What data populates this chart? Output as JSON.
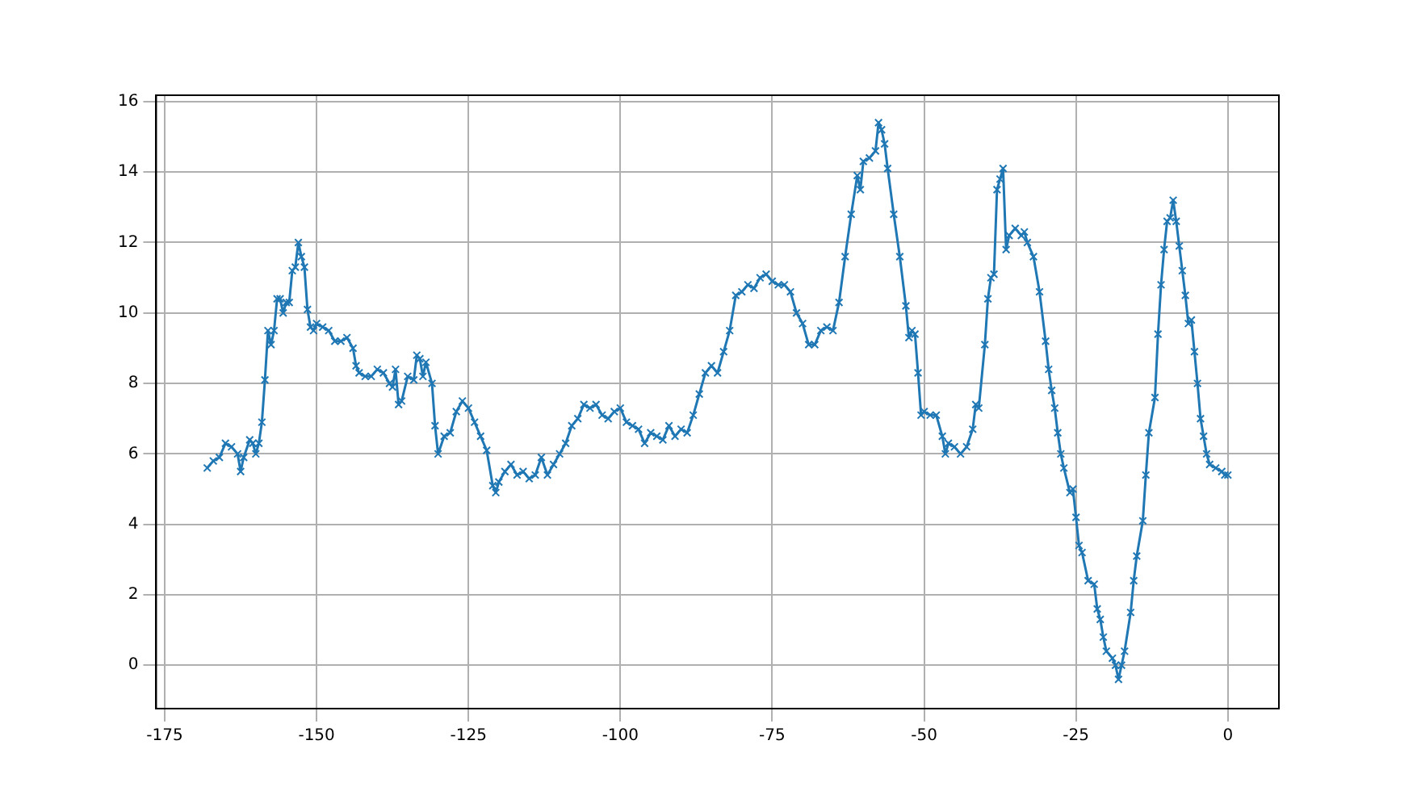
{
  "chart_data": {
    "type": "line",
    "xlim": [
      -176.4,
      8.4
    ],
    "ylim": [
      -1.23,
      16.18
    ],
    "xticks": [
      -175,
      -150,
      -125,
      -100,
      -75,
      -50,
      -25,
      0
    ],
    "yticks": [
      0,
      2,
      4,
      6,
      8,
      10,
      12,
      14,
      16
    ],
    "grid": true,
    "marker": "cross",
    "line_style": "solid",
    "legend": false,
    "series": [
      {
        "color": "#1f77b4",
        "x": [
          -168,
          -167,
          -166,
          -165,
          -164,
          -163,
          -162.5,
          -162,
          -161,
          -160.5,
          -160,
          -159.5,
          -159,
          -158.5,
          -158,
          -157.5,
          -157,
          -156.5,
          -156,
          -155.5,
          -155,
          -154.5,
          -154,
          -153.5,
          -153,
          -152.5,
          -152,
          -151.5,
          -151,
          -150.5,
          -150,
          -149,
          -148,
          -147,
          -146,
          -145,
          -144,
          -143.5,
          -143,
          -142,
          -141,
          -140,
          -139,
          -138,
          -137.5,
          -137,
          -136.5,
          -136,
          -135,
          -134,
          -133.5,
          -133,
          -132.5,
          -132,
          -131,
          -130.5,
          -130,
          -129,
          -128,
          -127,
          -126,
          -125,
          -124,
          -123,
          -122,
          -121,
          -120.5,
          -120,
          -119,
          -118,
          -117,
          -116,
          -115,
          -114,
          -113,
          -112,
          -111,
          -110,
          -109,
          -108,
          -107,
          -106,
          -105,
          -104,
          -103,
          -102,
          -101,
          -100,
          -99,
          -98,
          -97,
          -96,
          -95,
          -94,
          -93,
          -92,
          -91,
          -90,
          -89,
          -88,
          -87,
          -86,
          -85,
          -84,
          -83,
          -82,
          -81,
          -80,
          -79,
          -78,
          -77,
          -76,
          -75,
          -74,
          -73,
          -72,
          -71,
          -70,
          -69,
          -68,
          -67,
          -66,
          -65,
          -64,
          -63,
          -62,
          -61,
          -60.5,
          -60,
          -59,
          -58,
          -57.5,
          -57,
          -56.5,
          -56,
          -55,
          -54,
          -53,
          -52.5,
          -52,
          -51.5,
          -51,
          -50.5,
          -50,
          -49,
          -48,
          -47,
          -46.5,
          -46,
          -45,
          -44,
          -43,
          -42,
          -41.5,
          -41,
          -40,
          -39.5,
          -39,
          -38.5,
          -38,
          -37.5,
          -37,
          -36.5,
          -36,
          -35,
          -34,
          -33.5,
          -33,
          -32,
          -31,
          -30,
          -29.5,
          -29,
          -28.5,
          -28,
          -27.5,
          -27,
          -26,
          -25.5,
          -25,
          -24.5,
          -24,
          -23,
          -22,
          -21.5,
          -21,
          -20.5,
          -20,
          -19,
          -18.5,
          -18,
          -17.5,
          -17,
          -16,
          -15.5,
          -15,
          -14,
          -13.5,
          -13,
          -12,
          -11.5,
          -11,
          -10.5,
          -10,
          -9.5,
          -9,
          -8.5,
          -8,
          -7.5,
          -7,
          -6.5,
          -6,
          -5.5,
          -5,
          -4.5,
          -4,
          -3.5,
          -3,
          -2,
          -1,
          -0.5,
          0
        ],
        "values": [
          5.6,
          5.8,
          5.9,
          6.3,
          6.2,
          6.0,
          5.5,
          5.9,
          6.4,
          6.3,
          6.0,
          6.3,
          6.9,
          8.1,
          9.5,
          9.1,
          9.5,
          10.4,
          10.4,
          10.0,
          10.3,
          10.3,
          11.2,
          11.3,
          12.0,
          11.6,
          11.3,
          10.1,
          9.6,
          9.5,
          9.7,
          9.6,
          9.5,
          9.2,
          9.2,
          9.3,
          9.0,
          8.5,
          8.3,
          8.2,
          8.2,
          8.4,
          8.3,
          8.0,
          7.9,
          8.4,
          7.4,
          7.5,
          8.2,
          8.1,
          8.8,
          8.7,
          8.2,
          8.6,
          8.0,
          6.8,
          6.0,
          6.5,
          6.6,
          7.2,
          7.5,
          7.3,
          6.9,
          6.5,
          6.1,
          5.1,
          4.9,
          5.2,
          5.5,
          5.7,
          5.4,
          5.5,
          5.3,
          5.4,
          5.9,
          5.4,
          5.7,
          6.0,
          6.3,
          6.8,
          7.0,
          7.4,
          7.3,
          7.4,
          7.1,
          7.0,
          7.2,
          7.3,
          6.9,
          6.8,
          6.7,
          6.3,
          6.6,
          6.5,
          6.4,
          6.8,
          6.5,
          6.7,
          6.6,
          7.1,
          7.7,
          8.3,
          8.5,
          8.3,
          8.9,
          9.5,
          10.5,
          10.6,
          10.8,
          10.7,
          11.0,
          11.1,
          10.9,
          10.8,
          10.8,
          10.6,
          10.0,
          9.7,
          9.1,
          9.1,
          9.5,
          9.6,
          9.5,
          10.3,
          11.6,
          12.8,
          13.9,
          13.5,
          14.3,
          14.4,
          14.6,
          15.4,
          15.2,
          14.8,
          14.1,
          12.8,
          11.6,
          10.2,
          9.3,
          9.5,
          9.4,
          8.3,
          7.1,
          7.2,
          7.1,
          7.1,
          6.5,
          6.0,
          6.3,
          6.2,
          6.0,
          6.2,
          6.7,
          7.4,
          7.3,
          9.1,
          10.4,
          11.0,
          11.1,
          13.5,
          13.8,
          14.1,
          11.8,
          12.2,
          12.4,
          12.2,
          12.3,
          12.0,
          11.6,
          10.6,
          9.2,
          8.4,
          7.8,
          7.3,
          6.6,
          6.0,
          5.6,
          4.9,
          5.0,
          4.2,
          3.4,
          3.2,
          2.4,
          2.3,
          1.6,
          1.3,
          0.8,
          0.4,
          0.2,
          0.0,
          -0.4,
          0.0,
          0.4,
          1.5,
          2.4,
          3.1,
          4.1,
          5.4,
          6.6,
          7.6,
          9.4,
          10.8,
          11.8,
          12.6,
          12.7,
          13.2,
          12.6,
          11.9,
          11.2,
          10.5,
          9.7,
          9.8,
          8.9,
          8.0,
          7.0,
          6.5,
          6.0,
          5.7,
          5.6,
          5.5,
          5.4,
          5.4
        ]
      }
    ]
  }
}
